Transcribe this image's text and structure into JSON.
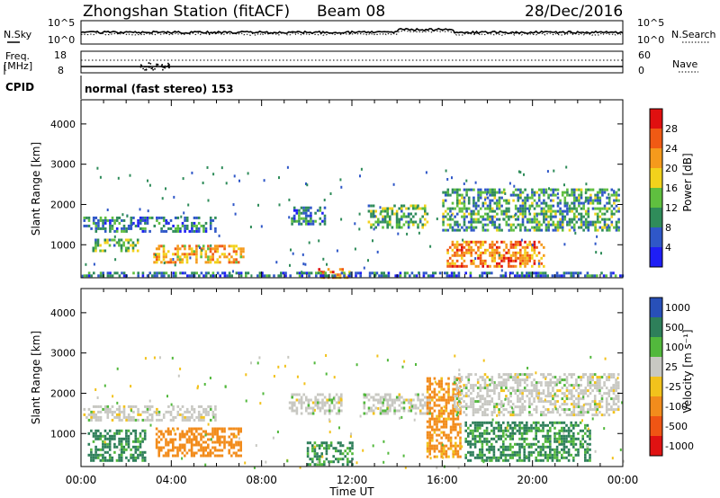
{
  "header": {
    "station": "Zhongshan Station (fitACF)",
    "beam": "Beam 08",
    "date": "28/Dec/2016"
  },
  "noise_panel": {
    "left_label": "N.Sky",
    "right_label": "N.Search",
    "ticks_left": [
      "10^5",
      "10^0"
    ],
    "ticks_right": [
      "10^5",
      "10^0"
    ]
  },
  "freq_panel": {
    "left_label_1": "Freq.",
    "left_label_2": "[MHz]",
    "right_label": "Nave",
    "ticks_left": [
      "18",
      "8"
    ],
    "ticks_right": [
      "60",
      "0"
    ]
  },
  "cpid": {
    "label": "CPID",
    "value": "normal (fast stereo) 153"
  },
  "colors": {
    "power_scale": [
      "#1e1ef5",
      "#2f57c8",
      "#2f8c5a",
      "#5fbf3f",
      "#f2d21c",
      "#f59a1c",
      "#f05a14",
      "#e01010"
    ],
    "velocity_scale": [
      "#2850b8",
      "#2e7f5a",
      "#52b83c",
      "#c8c8c2",
      "#f2c21c",
      "#f28c1c",
      "#ef5514",
      "#e01212"
    ]
  },
  "chart_data": [
    {
      "type": "heatmap",
      "title": "",
      "quantity": "Power",
      "xlabel": "",
      "ylabel": "Slant Range [km]",
      "y_ticks": [
        "1000",
        "2000",
        "3000",
        "4000"
      ],
      "ylim": [
        180,
        4600
      ],
      "colorbar": {
        "label": "Power [dB]",
        "ticks": [
          "4",
          "8",
          "12",
          "16",
          "20",
          "24",
          "28"
        ],
        "range": [
          0,
          32
        ]
      },
      "echo_regions": [
        {
          "t_start": 0.1,
          "t_end": 6.0,
          "r_low": 1300,
          "r_high": 1700,
          "value": 7
        },
        {
          "t_start": 0.5,
          "t_end": 2.5,
          "r_low": 850,
          "r_high": 1150,
          "value": 12
        },
        {
          "t_start": 3.2,
          "t_end": 7.2,
          "r_low": 550,
          "r_high": 1000,
          "value": 20
        },
        {
          "t_start": 9.3,
          "t_end": 10.8,
          "r_low": 1500,
          "r_high": 1950,
          "value": 7
        },
        {
          "t_start": 10.5,
          "t_end": 11.9,
          "r_low": 200,
          "r_high": 420,
          "value": 22
        },
        {
          "t_start": 12.7,
          "t_end": 15.3,
          "r_low": 1450,
          "r_high": 2000,
          "value": 12
        },
        {
          "t_start": 16.0,
          "t_end": 23.8,
          "r_low": 1350,
          "r_high": 2400,
          "value": 10
        },
        {
          "t_start": 16.2,
          "t_end": 20.5,
          "r_low": 450,
          "r_high": 1100,
          "value": 22
        },
        {
          "t_start": 0.0,
          "t_end": 24.0,
          "r_low": 200,
          "r_high": 330,
          "value": 6
        }
      ]
    },
    {
      "type": "heatmap",
      "title": "",
      "quantity": "Velocity",
      "xlabel": "Time UT",
      "ylabel": "Slant Range [km]",
      "x_ticks": [
        "00:00",
        "04:00",
        "08:00",
        "12:00",
        "16:00",
        "20:00",
        "00:00"
      ],
      "y_ticks": [
        "1000",
        "2000",
        "3000",
        "4000"
      ],
      "xlim": [
        0,
        24
      ],
      "ylim": [
        180,
        4600
      ],
      "colorbar": {
        "label": "Velocity [m s⁻¹]",
        "ticks": [
          "1000",
          "500",
          "100",
          "25",
          "-25",
          "-100",
          "-500",
          "-1000"
        ]
      },
      "echo_regions": [
        {
          "t_start": 0.1,
          "t_end": 6.0,
          "r_low": 1300,
          "r_high": 1700,
          "value": 0
        },
        {
          "t_start": 0.3,
          "t_end": 2.8,
          "r_low": 300,
          "r_high": 1100,
          "value": 150
        },
        {
          "t_start": 3.3,
          "t_end": 7.1,
          "r_low": 450,
          "r_high": 1150,
          "value": -300
        },
        {
          "t_start": 9.2,
          "t_end": 11.5,
          "r_low": 1500,
          "r_high": 2000,
          "value": 0
        },
        {
          "t_start": 10.0,
          "t_end": 12.0,
          "r_low": 250,
          "r_high": 800,
          "value": 120
        },
        {
          "t_start": 12.5,
          "t_end": 15.5,
          "r_low": 1500,
          "r_high": 2000,
          "value": 0
        },
        {
          "t_start": 15.3,
          "t_end": 16.8,
          "r_low": 400,
          "r_high": 2400,
          "value": -200
        },
        {
          "t_start": 16.5,
          "t_end": 23.8,
          "r_low": 1450,
          "r_high": 2500,
          "value": 0
        },
        {
          "t_start": 17.0,
          "t_end": 22.5,
          "r_low": 350,
          "r_high": 1300,
          "value": 150
        }
      ]
    }
  ]
}
